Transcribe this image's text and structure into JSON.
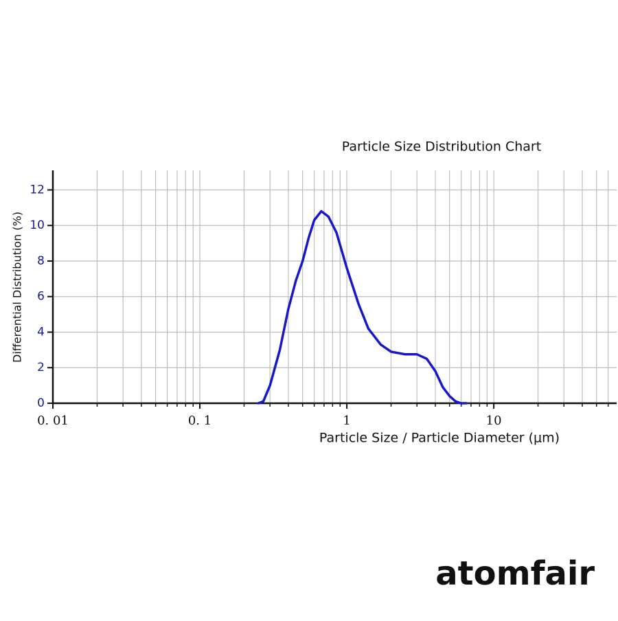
{
  "chart_data": {
    "type": "line",
    "title": "Particle Size Distribution Chart",
    "x_label": "Particle Size / Particle Diameter (μm)",
    "y_label": "Differential Distribution (%)",
    "log_x": true,
    "grid": true,
    "xlim": [
      0.01,
      68.5
    ],
    "ylim": [
      0,
      13.1
    ],
    "xticks": [
      {
        "value": 0.01,
        "label": "0. 01"
      },
      {
        "value": 0.1,
        "label": "0. 1"
      },
      1,
      10
    ],
    "x_minor_ticks": [
      0.02,
      0.03,
      0.04,
      0.05,
      0.06,
      0.07,
      0.08,
      0.09,
      0.2,
      0.3,
      0.4,
      0.5,
      0.6,
      0.7,
      0.8,
      0.9,
      2,
      3,
      4,
      5,
      6,
      7,
      8,
      9,
      20,
      30,
      40,
      50,
      60
    ],
    "yticks": [
      0,
      2,
      4,
      6,
      8,
      10,
      12
    ],
    "series": [
      {
        "name": "Differential Distribution",
        "color": "#1818c8",
        "x": [
          0.25,
          0.27,
          0.3,
          0.35,
          0.4,
          0.45,
          0.5,
          0.55,
          0.6,
          0.67,
          0.75,
          0.85,
          1.0,
          1.2,
          1.4,
          1.7,
          2.0,
          2.5,
          3.0,
          3.5,
          4.0,
          4.5,
          5.0,
          5.5,
          6.0,
          6.5
        ],
        "values": [
          0,
          0.1,
          1,
          3,
          5.3,
          6.9,
          8.0,
          9.3,
          10.3,
          10.8,
          10.5,
          9.6,
          7.6,
          5.6,
          4.2,
          3.3,
          2.9,
          2.75,
          2.75,
          2.5,
          1.8,
          0.9,
          0.4,
          0.1,
          0,
          0
        ]
      }
    ]
  },
  "brand": "atomfair"
}
